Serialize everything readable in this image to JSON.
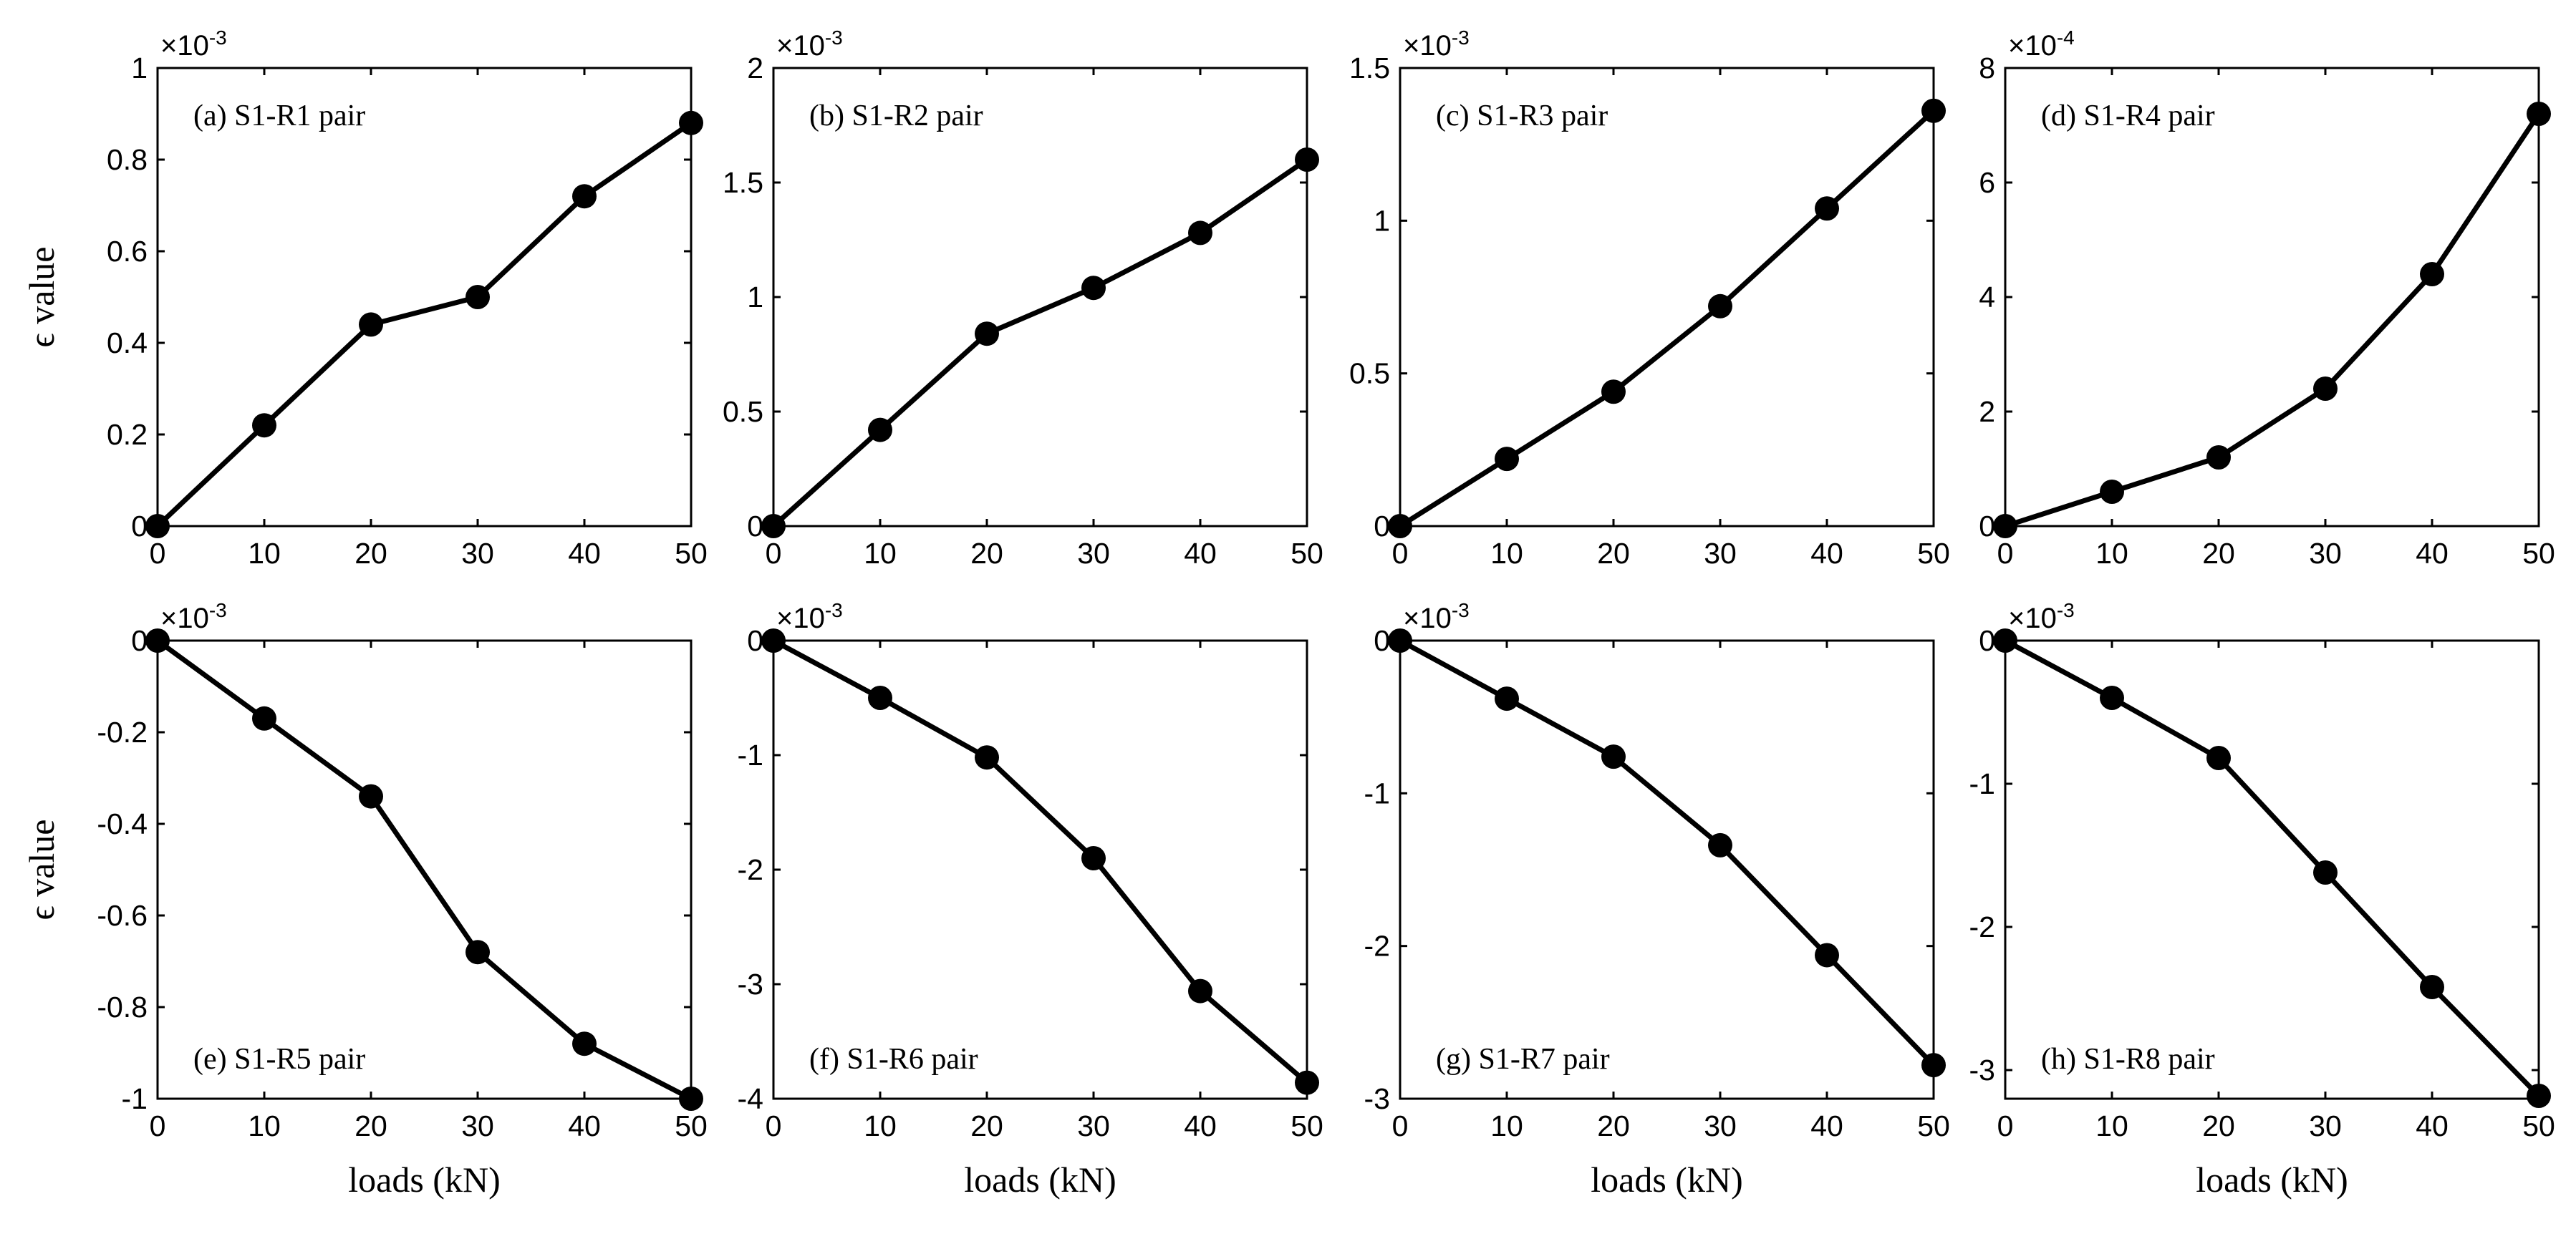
{
  "figure": {
    "shared_x_label": "loads (kN)",
    "shared_y_label": "ϵ value",
    "colors": {
      "line": "#000000",
      "background": "#ffffff"
    }
  },
  "chart_data": [
    {
      "type": "line",
      "title": "(a) S1-R1 pair",
      "xlabel": "",
      "ylabel": "ϵ value",
      "x": [
        0,
        10,
        20,
        30,
        40,
        50
      ],
      "series": [
        {
          "name": "S1-R1 pair",
          "values": [
            0,
            0.22,
            0.44,
            0.5,
            0.72,
            0.88
          ]
        }
      ],
      "xlim": [
        0,
        50
      ],
      "ylim": [
        0,
        1
      ],
      "xticks": [
        0,
        10,
        20,
        30,
        40,
        50
      ],
      "yticks": [
        0,
        0.2,
        0.4,
        0.6,
        0.8,
        1
      ],
      "ytick_labels": [
        "0",
        "0.2",
        "0.4",
        "0.6",
        "0.8",
        "1"
      ],
      "exponent_base": "×10",
      "exponent_power": "-3",
      "label_position": "top-left",
      "grid": false
    },
    {
      "type": "line",
      "title": "(b) S1-R2 pair",
      "xlabel": "",
      "ylabel": "",
      "x": [
        0,
        10,
        20,
        30,
        40,
        50
      ],
      "series": [
        {
          "name": "S1-R2 pair",
          "values": [
            0,
            0.42,
            0.84,
            1.04,
            1.28,
            1.6
          ]
        }
      ],
      "xlim": [
        0,
        50
      ],
      "ylim": [
        0,
        2
      ],
      "xticks": [
        0,
        10,
        20,
        30,
        40,
        50
      ],
      "yticks": [
        0,
        0.5,
        1,
        1.5,
        2
      ],
      "ytick_labels": [
        "0",
        "0.5",
        "1",
        "1.5",
        "2"
      ],
      "exponent_base": "×10",
      "exponent_power": "-3",
      "label_position": "top-left",
      "grid": false
    },
    {
      "type": "line",
      "title": "(c) S1-R3 pair",
      "xlabel": "",
      "ylabel": "",
      "x": [
        0,
        10,
        20,
        30,
        40,
        50
      ],
      "series": [
        {
          "name": "S1-R3 pair",
          "values": [
            0,
            0.22,
            0.44,
            0.72,
            1.04,
            1.36
          ]
        }
      ],
      "xlim": [
        0,
        50
      ],
      "ylim": [
        0,
        1.5
      ],
      "xticks": [
        0,
        10,
        20,
        30,
        40,
        50
      ],
      "yticks": [
        0,
        0.5,
        1,
        1.5
      ],
      "ytick_labels": [
        "0",
        "0.5",
        "1",
        "1.5"
      ],
      "exponent_base": "×10",
      "exponent_power": "-3",
      "label_position": "top-left",
      "grid": false
    },
    {
      "type": "line",
      "title": "(d) S1-R4 pair",
      "xlabel": "",
      "ylabel": "",
      "x": [
        0,
        10,
        20,
        30,
        40,
        50
      ],
      "series": [
        {
          "name": "S1-R4 pair",
          "values": [
            0,
            0.6,
            1.2,
            2.4,
            4.4,
            7.2
          ]
        }
      ],
      "xlim": [
        0,
        50
      ],
      "ylim": [
        0,
        8
      ],
      "xticks": [
        0,
        10,
        20,
        30,
        40,
        50
      ],
      "yticks": [
        0,
        2,
        4,
        6,
        8
      ],
      "ytick_labels": [
        "0",
        "2",
        "4",
        "6",
        "8"
      ],
      "exponent_base": "×10",
      "exponent_power": "-4",
      "label_position": "top-left",
      "grid": false
    },
    {
      "type": "line",
      "title": "(e) S1-R5 pair",
      "xlabel": "loads (kN)",
      "ylabel": "ϵ value",
      "x": [
        0,
        10,
        20,
        30,
        40,
        50
      ],
      "series": [
        {
          "name": "S1-R5 pair",
          "values": [
            0,
            -0.17,
            -0.34,
            -0.68,
            -0.88,
            -1
          ]
        }
      ],
      "xlim": [
        0,
        50
      ],
      "ylim": [
        -1,
        0
      ],
      "xticks": [
        0,
        10,
        20,
        30,
        40,
        50
      ],
      "yticks": [
        -1,
        -0.8,
        -0.6,
        -0.4,
        -0.2,
        0
      ],
      "ytick_labels": [
        "-1",
        "-0.8",
        "-0.6",
        "-0.4",
        "-0.2",
        "0"
      ],
      "exponent_base": "×10",
      "exponent_power": "-3",
      "label_position": "bottom-left",
      "grid": false
    },
    {
      "type": "line",
      "title": "(f) S1-R6 pair",
      "xlabel": "loads (kN)",
      "ylabel": "",
      "x": [
        0,
        10,
        20,
        30,
        40,
        50
      ],
      "series": [
        {
          "name": "S1-R6 pair",
          "values": [
            0,
            -0.5,
            -1.02,
            -1.9,
            -3.06,
            -3.86
          ]
        }
      ],
      "xlim": [
        0,
        50
      ],
      "ylim": [
        -4,
        0
      ],
      "xticks": [
        0,
        10,
        20,
        30,
        40,
        50
      ],
      "yticks": [
        -4,
        -3,
        -2,
        -1,
        0
      ],
      "ytick_labels": [
        "-4",
        "-3",
        "-2",
        "-1",
        "0"
      ],
      "exponent_base": "×10",
      "exponent_power": "-3",
      "label_position": "bottom-left",
      "grid": false
    },
    {
      "type": "line",
      "title": "(g) S1-R7 pair",
      "xlabel": "loads (kN)",
      "ylabel": "",
      "x": [
        0,
        10,
        20,
        30,
        40,
        50
      ],
      "series": [
        {
          "name": "S1-R7 pair",
          "values": [
            0,
            -0.38,
            -0.76,
            -1.34,
            -2.06,
            -2.78
          ]
        }
      ],
      "xlim": [
        0,
        50
      ],
      "ylim": [
        -3,
        0
      ],
      "xticks": [
        0,
        10,
        20,
        30,
        40,
        50
      ],
      "yticks": [
        -3,
        -2,
        -1,
        0
      ],
      "ytick_labels": [
        "-3",
        "-2",
        "-1",
        "0"
      ],
      "exponent_base": "×10",
      "exponent_power": "-3",
      "label_position": "bottom-left",
      "grid": false
    },
    {
      "type": "line",
      "title": "(h) S1-R8 pair",
      "xlabel": "loads (kN)",
      "ylabel": "",
      "x": [
        0,
        10,
        20,
        30,
        40,
        50
      ],
      "series": [
        {
          "name": "S1-R8 pair",
          "values": [
            0,
            -0.4,
            -0.82,
            -1.62,
            -2.42,
            -3.18
          ]
        }
      ],
      "xlim": [
        0,
        50
      ],
      "ylim": [
        -3.2,
        0
      ],
      "xticks": [
        0,
        10,
        20,
        30,
        40,
        50
      ],
      "yticks": [
        -3,
        -2,
        -1,
        0
      ],
      "ytick_labels": [
        "-3",
        "-2",
        "-1",
        "0"
      ],
      "exponent_base": "×10",
      "exponent_power": "-3",
      "label_position": "bottom-left",
      "grid": false
    }
  ]
}
